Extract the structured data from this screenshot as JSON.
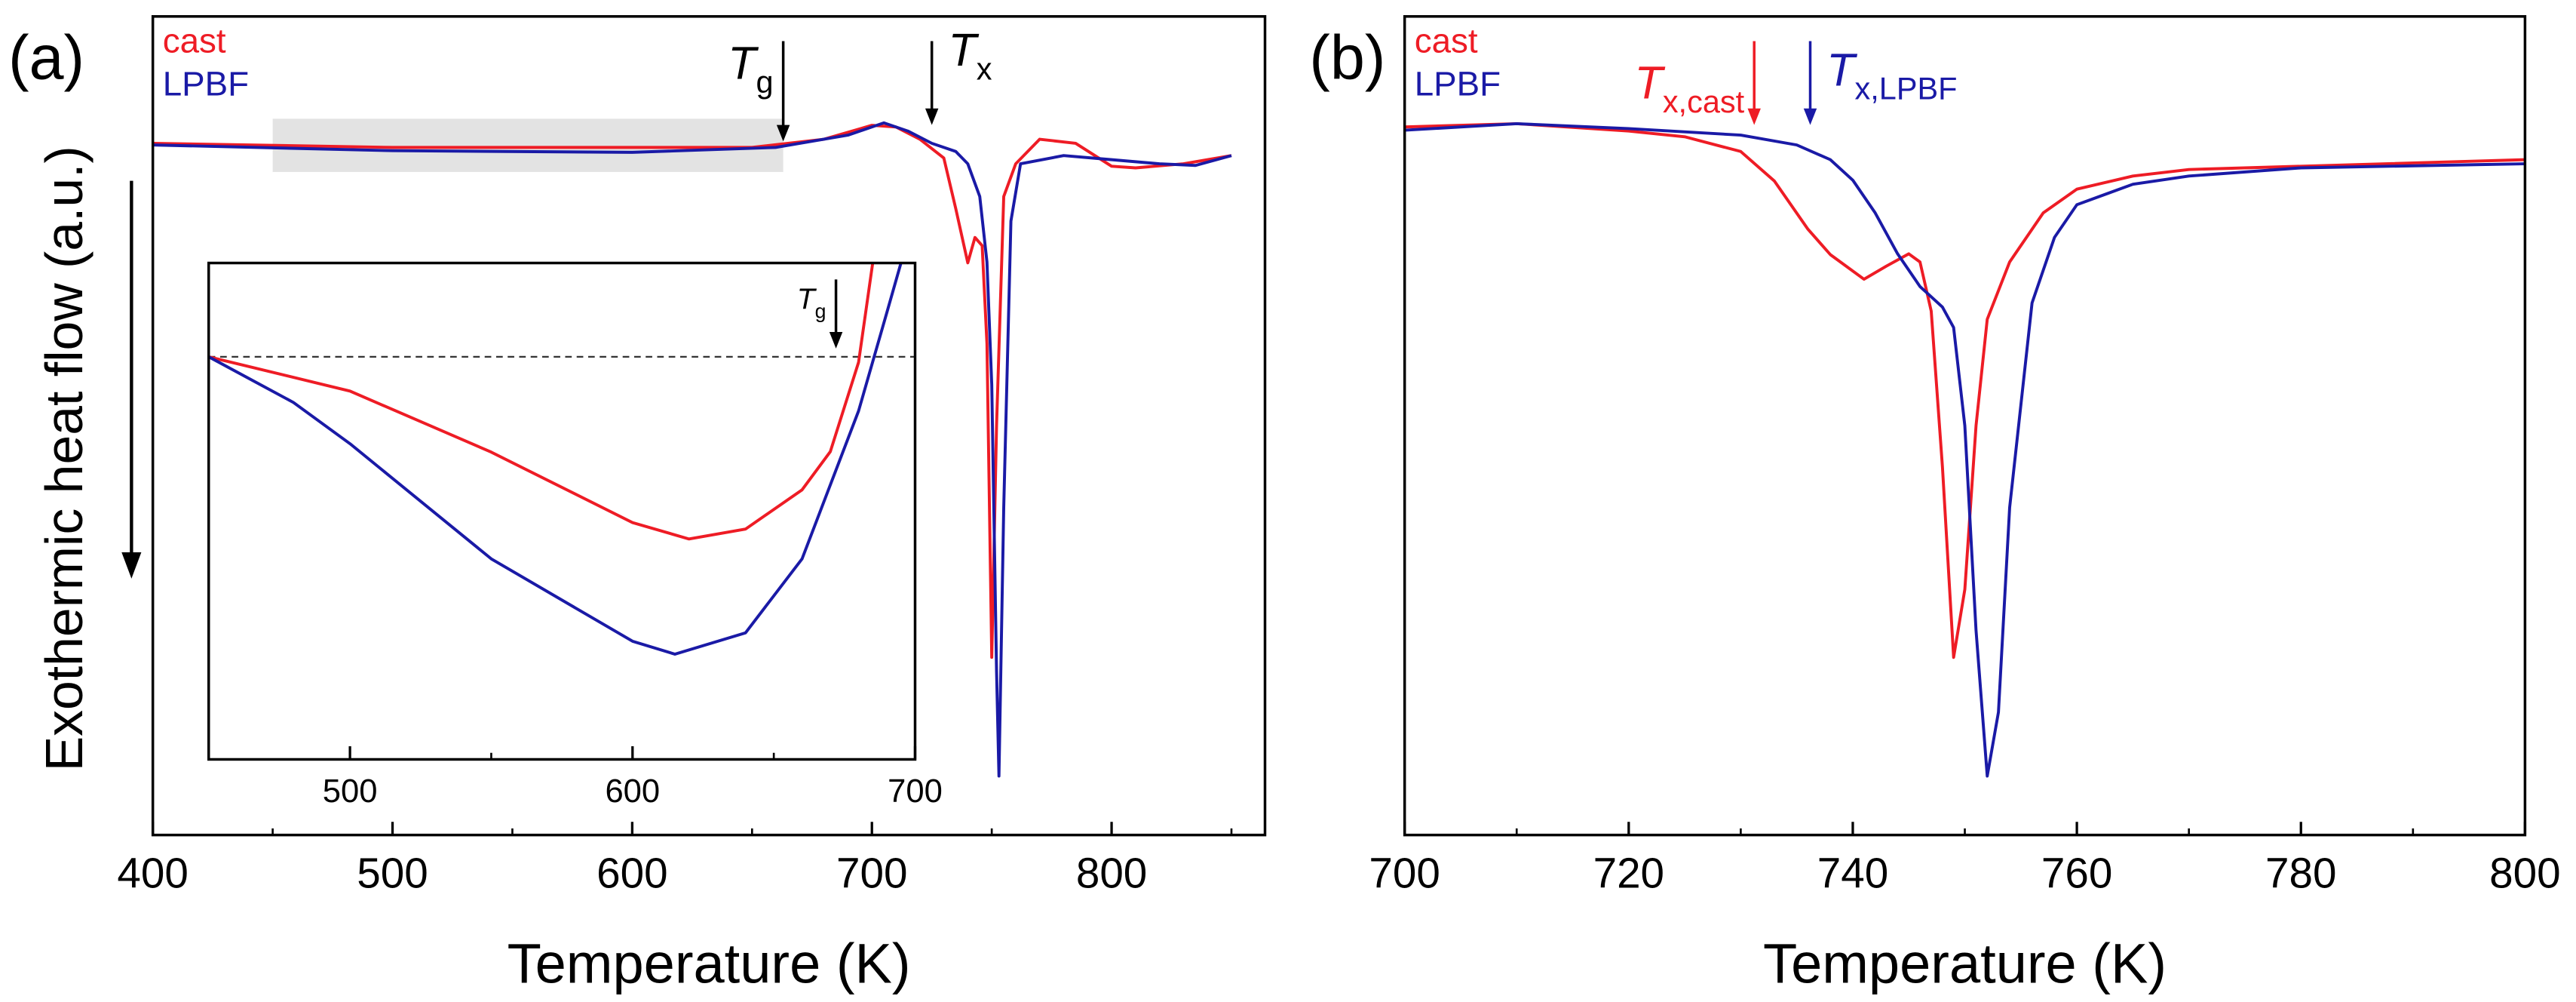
{
  "chart_data": [
    {
      "type": "line",
      "panel_label": "(a)",
      "xlabel": "Temperature (K)",
      "ylabel": "Exothermic heat flow (a.u.)",
      "xlim": [
        400,
        864
      ],
      "xticks": [
        400,
        500,
        600,
        700,
        800
      ],
      "xminorticks": [
        450,
        550,
        650,
        750,
        850
      ],
      "ylim": [
        0,
        100
      ],
      "highlight": {
        "xrange": [
          450,
          663
        ],
        "yrange": [
          81,
          87.5
        ],
        "color": "#e3e3e3"
      },
      "annotations": [
        {
          "text": "T",
          "sub": "g",
          "x": 663,
          "color": "#000000"
        },
        {
          "text": "T",
          "sub": "x",
          "x": 725,
          "color": "#000000"
        }
      ],
      "series": [
        {
          "name": "cast",
          "color": "#ee1c25",
          "x": [
            400,
            500,
            600,
            650,
            680,
            700,
            710,
            720,
            730,
            735,
            740,
            743,
            746,
            748,
            750,
            752,
            755,
            760,
            770,
            785,
            800,
            810,
            830,
            850
          ],
          "values": [
            84.5,
            84,
            84,
            84,
            85,
            86.7,
            86.5,
            85,
            82.7,
            76.5,
            69.9,
            73,
            72,
            60,
            21.7,
            50,
            78,
            82,
            85,
            84.5,
            81.7,
            81.5,
            82,
            83
          ]
        },
        {
          "name": "LPBF",
          "color": "#1a1aa6",
          "x": [
            400,
            500,
            600,
            660,
            690,
            705,
            715,
            725,
            735,
            740,
            745,
            748,
            750,
            752,
            753,
            755,
            758,
            762,
            780,
            800,
            820,
            835,
            850
          ],
          "values": [
            84.3,
            83.6,
            83.4,
            84,
            85.5,
            87,
            86,
            84.5,
            83.5,
            82,
            78,
            70,
            55,
            20,
            7.2,
            40,
            75,
            82,
            83,
            82.5,
            82,
            81.8,
            83
          ]
        }
      ]
    },
    {
      "type": "line",
      "xlim": [
        450,
        700
      ],
      "xticks": [
        500,
        600,
        700
      ],
      "xminorticks": [
        550,
        650
      ],
      "ylim": [
        0,
        100
      ],
      "baseline": 81.1,
      "annotations": [
        {
          "text": "T",
          "sub": "g",
          "x": 672,
          "color": "#000000"
        }
      ],
      "series": [
        {
          "color": "#ee1c25",
          "x": [
            450,
            500,
            550,
            600,
            620,
            640,
            660,
            670,
            680,
            685
          ],
          "values": [
            81.1,
            74.2,
            61.9,
            47.7,
            44.4,
            46.4,
            54.3,
            62,
            80,
            100
          ]
        },
        {
          "color": "#1a1aa6",
          "x": [
            450,
            480,
            500,
            550,
            600,
            615,
            640,
            660,
            680,
            690,
            695
          ],
          "values": [
            81.1,
            71.9,
            63.6,
            40.4,
            23.8,
            21.2,
            25.5,
            40.4,
            70.2,
            90,
            100
          ]
        }
      ]
    },
    {
      "type": "line",
      "panel_label": "(b)",
      "xlabel": "Temperature (K)",
      "xlim": [
        700,
        800
      ],
      "xticks": [
        700,
        720,
        740,
        760,
        780,
        800
      ],
      "xminorticks": [
        710,
        730,
        750,
        770,
        790
      ],
      "ylim": [
        0,
        100
      ],
      "annotations": [
        {
          "text": "T",
          "sub": "x,cast",
          "x": 731.2,
          "color": "#ee1c25"
        },
        {
          "text": "T",
          "sub": "x,LPBF",
          "x": 736.2,
          "color": "#1a1aa6"
        }
      ],
      "series": [
        {
          "name": "cast",
          "color": "#ee1c25",
          "x": [
            700,
            710,
            720,
            725,
            730,
            733,
            736,
            738,
            741,
            743,
            745,
            746,
            747,
            748,
            749,
            750,
            751,
            752,
            754,
            757,
            760,
            765,
            770,
            780,
            800
          ],
          "values": [
            86.5,
            86.9,
            86,
            85.3,
            83.5,
            79.9,
            74,
            70.9,
            67.9,
            69.5,
            71,
            70,
            64,
            45,
            21.7,
            30,
            50,
            63,
            70,
            76,
            78.9,
            80.5,
            81.3,
            81.7,
            82.5
          ]
        },
        {
          "name": "LPBF",
          "color": "#1a1aa6",
          "x": [
            700,
            710,
            720,
            730,
            735,
            738,
            740,
            742,
            744,
            746,
            748,
            749,
            750,
            751,
            752,
            753,
            754,
            756,
            758,
            760,
            765,
            770,
            780,
            800
          ],
          "values": [
            86.1,
            86.9,
            86.3,
            85.5,
            84.3,
            82.5,
            80,
            76,
            71,
            67,
            64.5,
            62,
            50,
            25,
            7.2,
            15,
            40,
            65,
            73,
            77,
            79.5,
            80.5,
            81.5,
            82
          ]
        }
      ]
    }
  ]
}
